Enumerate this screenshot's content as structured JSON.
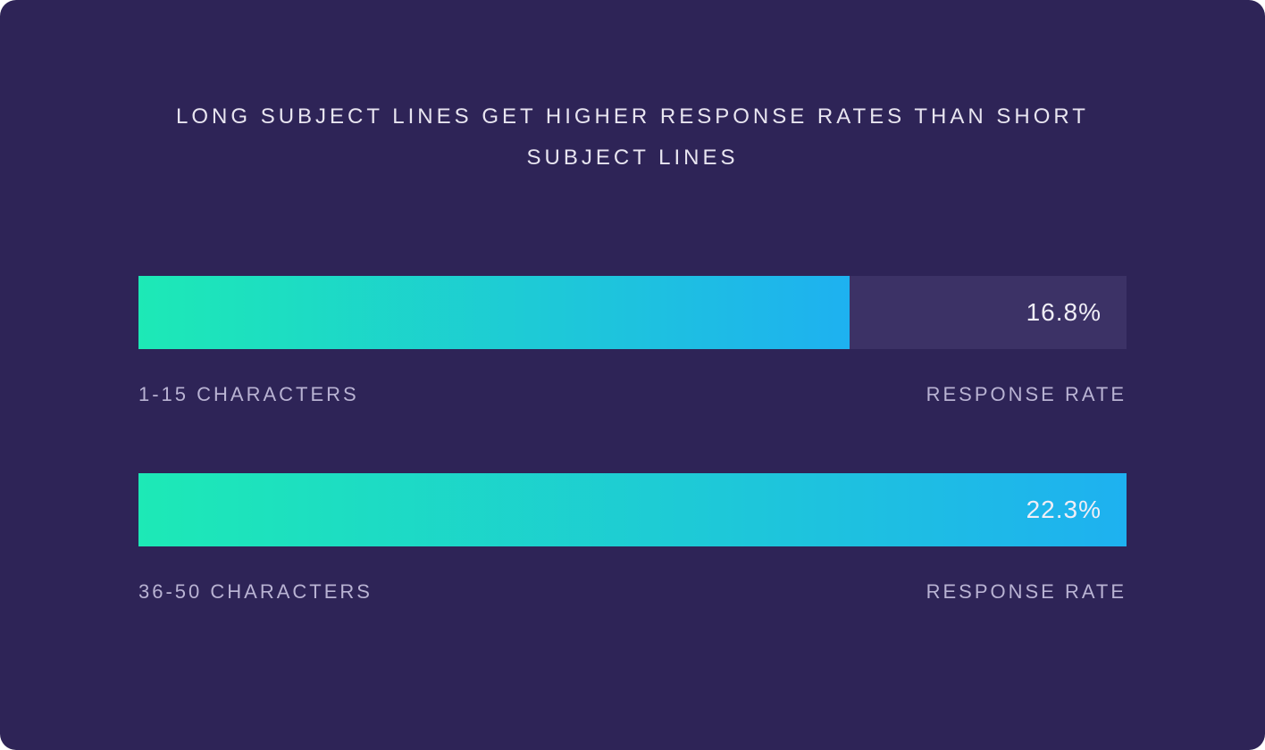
{
  "chart": {
    "type": "bar",
    "background_color": "#2e2457",
    "card_border_radius": 18,
    "title": {
      "text": "LONG SUBJECT LINES GET HIGHER RESPONSE RATES THAN SHORT SUBJECT LINES",
      "color": "#e8e5f0",
      "fontsize": 24,
      "letter_spacing": 4
    },
    "bar_track": {
      "background_color": "#3c3266",
      "height": 82
    },
    "bar_fill": {
      "gradient_start": "#1de9b6",
      "gradient_end": "#1eb1f0"
    },
    "value_text": {
      "color": "#f0eef6",
      "fontsize": 28
    },
    "label_text": {
      "color": "#b9b3d3",
      "fontsize": 22,
      "letter_spacing": 3
    },
    "bars": [
      {
        "fill_percent": 72,
        "value": "16.8%",
        "left_label": "1-15 CHARACTERS",
        "right_label": "RESPONSE RATE"
      },
      {
        "fill_percent": 100,
        "value": "22.3%",
        "left_label": "36-50 CHARACTERS",
        "right_label": "RESPONSE RATE"
      }
    ]
  }
}
